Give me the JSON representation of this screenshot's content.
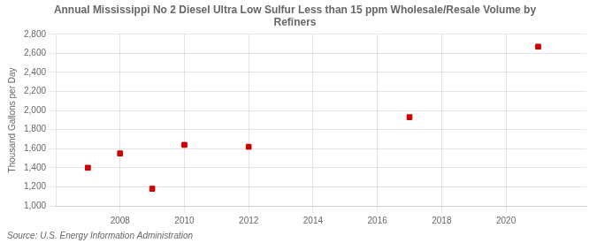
{
  "chart_data": {
    "type": "scatter",
    "title": "Annual Mississippi No 2 Diesel Ultra Low Sulfur Less than 15 ppm Wholesale/Resale Volume by\nRefiners",
    "ylabel": "Thousand Gallons per Day",
    "annotation": "Source: U.S. Energy Information Administration",
    "x": [
      2007,
      2008,
      2009,
      2010,
      2012,
      2017,
      2021
    ],
    "values": [
      1400,
      1550,
      1180,
      1640,
      1620,
      1930,
      2670
    ],
    "color": "#cc0000",
    "marker": "square",
    "xlim": [
      2006.0,
      2022.5
    ],
    "ylim": [
      1000,
      2800
    ],
    "xticks": [
      2008,
      2010,
      2012,
      2014,
      2016,
      2018,
      2020
    ],
    "yticks": [
      {
        "value": 1000,
        "label": "1,000"
      },
      {
        "value": 1200,
        "label": "1,200"
      },
      {
        "value": 1400,
        "label": "1,400"
      },
      {
        "value": 1600,
        "label": "1,600"
      },
      {
        "value": 1800,
        "label": "1,800"
      },
      {
        "value": 2000,
        "label": "2,000"
      },
      {
        "value": 2200,
        "label": "2,200"
      },
      {
        "value": 2400,
        "label": "2,400"
      },
      {
        "value": 2600,
        "label": "2,600"
      },
      {
        "value": 2800,
        "label": "2,800"
      }
    ],
    "grid": true
  }
}
